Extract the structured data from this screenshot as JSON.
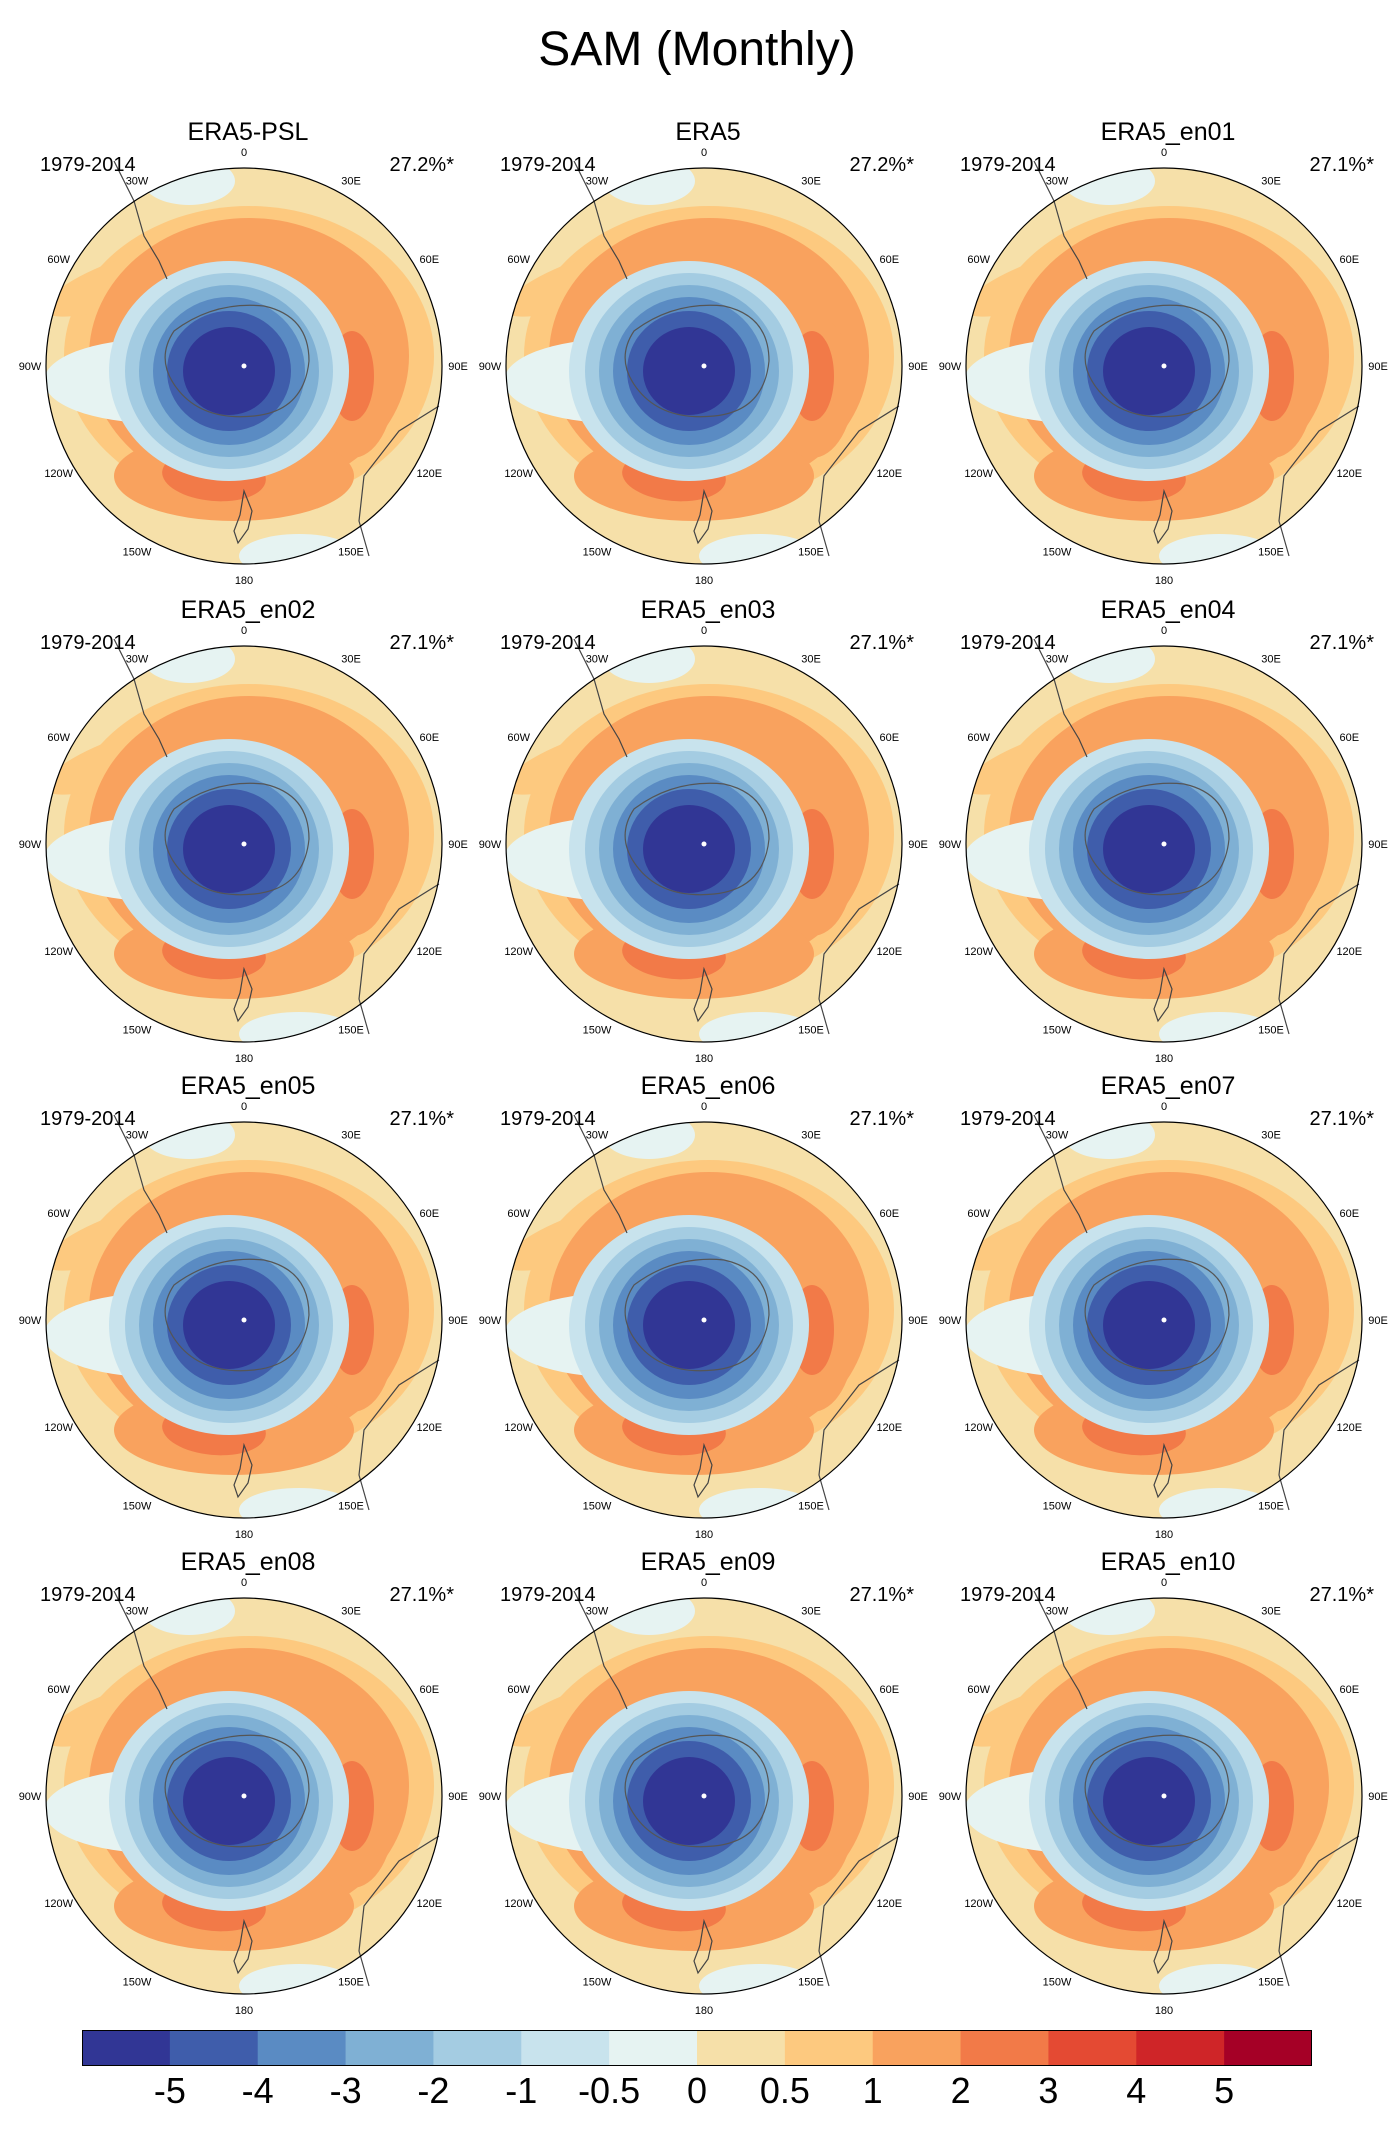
{
  "title": "SAM (Monthly)",
  "longitude_labels": [
    "0",
    "30E",
    "60E",
    "90E",
    "120E",
    "150E",
    "180",
    "150W",
    "120W",
    "90W",
    "60W",
    "30W"
  ],
  "chart_data": {
    "type": "polar contour map",
    "title": "SAM (Monthly)",
    "projection": "south polar stereographic",
    "contour_levels": [
      -5,
      -4,
      -3,
      -2,
      -1,
      -0.5,
      0,
      0.5,
      1,
      2,
      3,
      4,
      5
    ],
    "panels": [
      {
        "name": "ERA5-PSL",
        "period": "1979-2014",
        "variance": "27.2%*"
      },
      {
        "name": "ERA5",
        "period": "1979-2014",
        "variance": "27.2%*"
      },
      {
        "name": "ERA5_en01",
        "period": "1979-2014",
        "variance": "27.1%*"
      },
      {
        "name": "ERA5_en02",
        "period": "1979-2014",
        "variance": "27.1%*"
      },
      {
        "name": "ERA5_en03",
        "period": "1979-2014",
        "variance": "27.1%*"
      },
      {
        "name": "ERA5_en04",
        "period": "1979-2014",
        "variance": "27.1%*"
      },
      {
        "name": "ERA5_en05",
        "period": "1979-2014",
        "variance": "27.1%*"
      },
      {
        "name": "ERA5_en06",
        "period": "1979-2014",
        "variance": "27.1%*"
      },
      {
        "name": "ERA5_en07",
        "period": "1979-2014",
        "variance": "27.1%*"
      },
      {
        "name": "ERA5_en08",
        "period": "1979-2014",
        "variance": "27.1%*"
      },
      {
        "name": "ERA5_en09",
        "period": "1979-2014",
        "variance": "27.1%*"
      },
      {
        "name": "ERA5_en10",
        "period": "1979-2014",
        "variance": "27.1%*"
      }
    ],
    "colorbar": {
      "labels": [
        "-5",
        "-4",
        "-3",
        "-2",
        "-1",
        "-0.5",
        "0",
        "0.5",
        "1",
        "2",
        "3",
        "4",
        "5"
      ],
      "colors": [
        "#313695",
        "#3f5dab",
        "#5a8bc3",
        "#7fb0d4",
        "#a4cce2",
        "#c8e3ed",
        "#e6f3f2",
        "#f6e0a9",
        "#fdc97f",
        "#f9a25e",
        "#f27a48",
        "#e44a33",
        "#cf2528",
        "#a50026"
      ]
    }
  }
}
